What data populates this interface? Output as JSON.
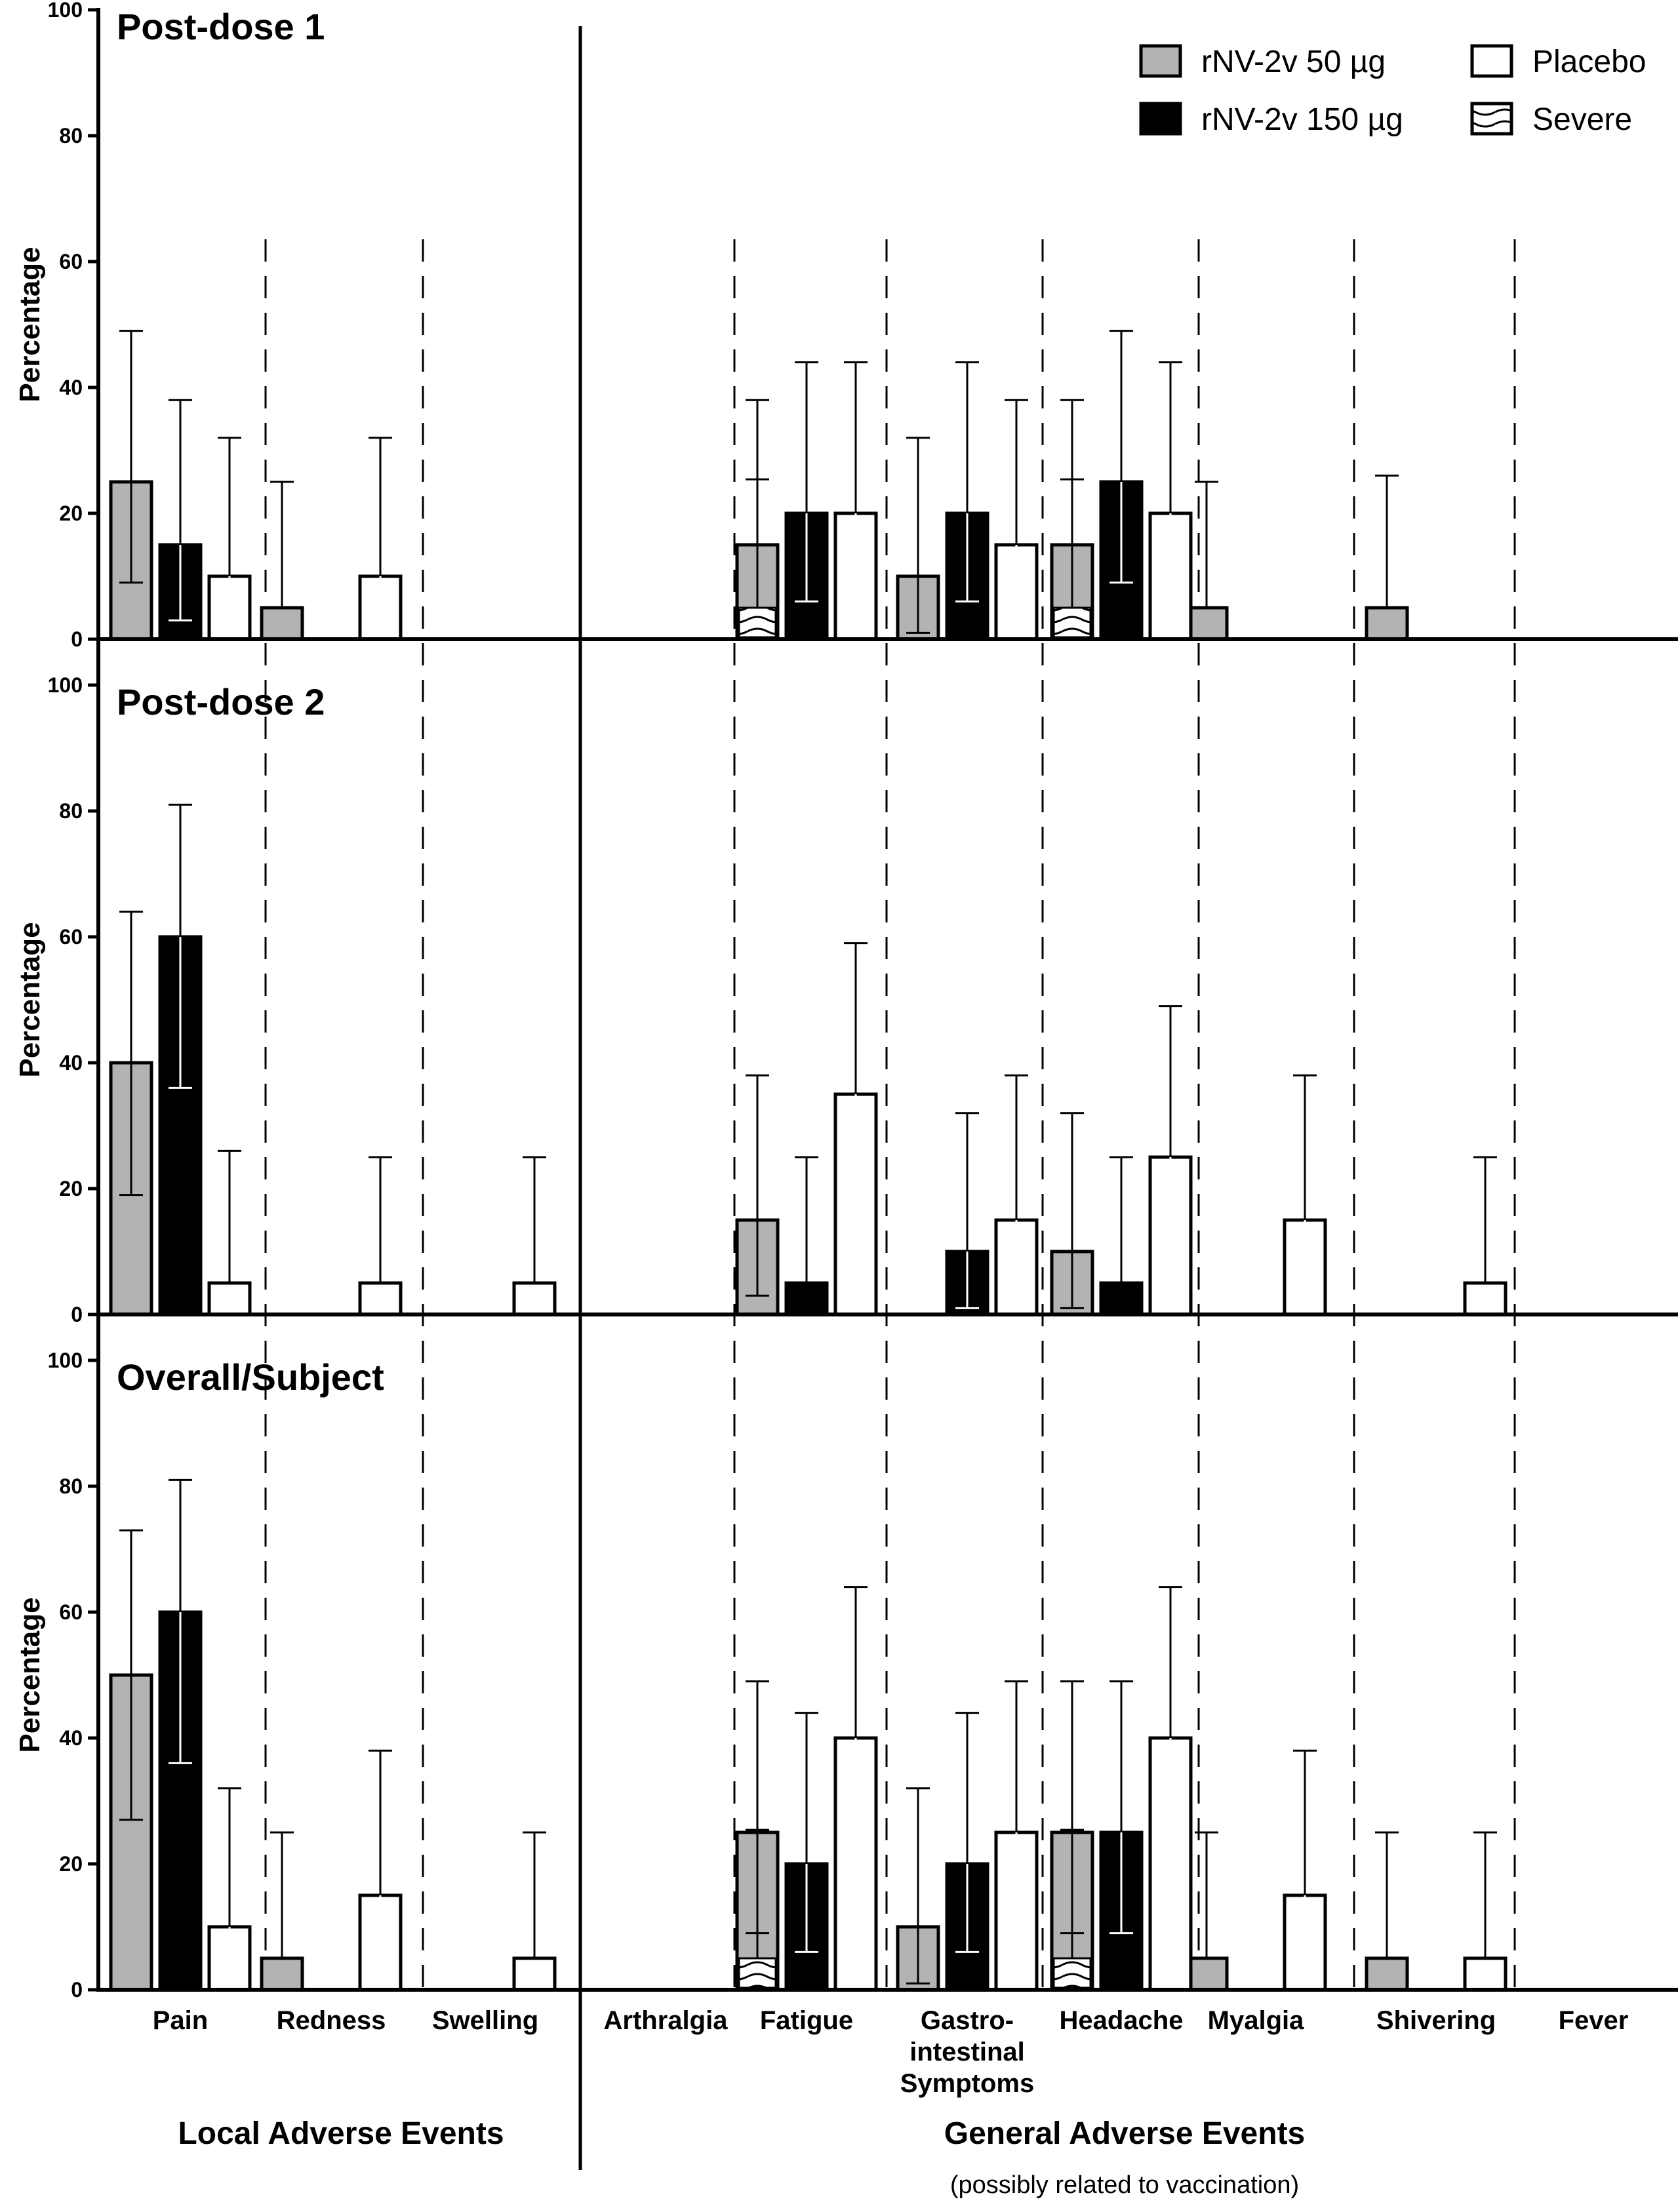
{
  "chart_data": {
    "type": "bar",
    "categories": [
      "Pain",
      "Redness",
      "Swelling",
      "Arthralgia",
      "Fatigue",
      "Gastro-\nintestinal\nSymptoms",
      "Headache",
      "Myalgia",
      "Shivering",
      "Fever"
    ],
    "group_labels": [
      {
        "label": "Local Adverse Events",
        "sub": ""
      },
      {
        "label": "General Adverse Events",
        "sub": "(possibly related to vaccination)"
      }
    ],
    "ylabel": "Percentage",
    "ylim": [
      0,
      100
    ],
    "yticks": [
      0,
      20,
      40,
      60,
      80,
      100
    ],
    "legend": {
      "placement": "top-right",
      "items": [
        {
          "name": "rNV-2v 50 µg",
          "color": "#b3b3b3",
          "pattern": "solid"
        },
        {
          "name": "rNV-2v 150 µg",
          "color": "#000000",
          "pattern": "solid"
        },
        {
          "name": "Placebo",
          "color": "#ffffff",
          "pattern": "solid"
        },
        {
          "name": "Severe",
          "color": "#ffffff",
          "pattern": "wavy"
        }
      ]
    },
    "panels": [
      {
        "title": "Post-dose 1",
        "series": [
          {
            "name": "rNV-2v 50 µg",
            "values": [
              25,
              5,
              0,
              0,
              15,
              10,
              15,
              5,
              5,
              0
            ],
            "err_upper": [
              49,
              25,
              null,
              null,
              38,
              32,
              38,
              25,
              26,
              null
            ],
            "err_lower": [
              9,
              null,
              null,
              null,
              null,
              1,
              null,
              null,
              null,
              null
            ],
            "severe": [
              0,
              0,
              0,
              0,
              5,
              0,
              5,
              0,
              0,
              0
            ],
            "severe_err_upper": [
              null,
              null,
              null,
              null,
              25.4,
              null,
              25.4,
              null,
              null,
              null
            ]
          },
          {
            "name": "rNV-2v 150 µg",
            "values": [
              15,
              0,
              0,
              0,
              20,
              20,
              25,
              0,
              0,
              0
            ],
            "err_upper": [
              38,
              null,
              null,
              null,
              44,
              44,
              49,
              null,
              null,
              null
            ],
            "err_lower": [
              3,
              null,
              null,
              null,
              6,
              6,
              9,
              null,
              null,
              null
            ],
            "severe": [
              0,
              0,
              0,
              0,
              0,
              0,
              0,
              0,
              0,
              0
            ],
            "severe_err_upper": [
              null,
              null,
              null,
              null,
              null,
              null,
              null,
              null,
              null,
              null
            ]
          },
          {
            "name": "Placebo",
            "values": [
              10,
              10,
              0,
              0,
              20,
              15,
              20,
              0,
              0,
              0
            ],
            "err_upper": [
              32,
              32,
              null,
              null,
              44,
              38,
              44,
              null,
              null,
              null
            ],
            "err_lower": [
              1,
              1,
              null,
              null,
              6,
              3,
              6,
              null,
              null,
              null
            ],
            "severe": [
              0,
              0,
              0,
              0,
              0,
              0,
              0,
              0,
              0,
              0
            ],
            "severe_err_upper": [
              null,
              null,
              null,
              null,
              null,
              null,
              null,
              null,
              null,
              null
            ]
          }
        ]
      },
      {
        "title": "Post-dose 2",
        "series": [
          {
            "name": "rNV-2v 50 µg",
            "values": [
              40,
              0,
              0,
              0,
              15,
              0,
              10,
              0,
              0,
              0
            ],
            "err_upper": [
              64,
              null,
              null,
              null,
              38,
              null,
              32,
              null,
              null,
              null
            ],
            "err_lower": [
              19,
              null,
              null,
              null,
              3,
              null,
              1,
              null,
              null,
              null
            ],
            "severe": [
              0,
              0,
              0,
              0,
              0,
              0,
              0,
              0,
              0,
              0
            ],
            "severe_err_upper": [
              null,
              null,
              null,
              null,
              null,
              null,
              null,
              null,
              null,
              null
            ]
          },
          {
            "name": "rNV-2v 150 µg",
            "values": [
              60,
              0,
              0,
              0,
              5,
              10,
              5,
              0,
              0,
              0
            ],
            "err_upper": [
              81,
              null,
              null,
              null,
              25,
              32,
              25,
              null,
              null,
              null
            ],
            "err_lower": [
              36,
              null,
              null,
              null,
              null,
              1,
              null,
              null,
              null,
              null
            ],
            "severe": [
              0,
              0,
              0,
              0,
              0,
              0,
              0,
              0,
              0,
              0
            ],
            "severe_err_upper": [
              null,
              null,
              null,
              null,
              null,
              null,
              null,
              null,
              null,
              null
            ]
          },
          {
            "name": "Placebo",
            "values": [
              5,
              5,
              5,
              0,
              35,
              15,
              25,
              15,
              5,
              0
            ],
            "err_upper": [
              26,
              25,
              25,
              null,
              59,
              38,
              49,
              38,
              25,
              null
            ],
            "err_lower": [
              null,
              null,
              null,
              null,
              15,
              3,
              9,
              3,
              null,
              null
            ],
            "severe": [
              0,
              0,
              0,
              0,
              0,
              0,
              0,
              0,
              0,
              0
            ],
            "severe_err_upper": [
              null,
              null,
              null,
              null,
              null,
              null,
              null,
              null,
              null,
              null
            ]
          }
        ]
      },
      {
        "title": "Overall/Subject",
        "series": [
          {
            "name": "rNV-2v 50 µg",
            "values": [
              50,
              5,
              0,
              0,
              25,
              10,
              25,
              5,
              5,
              0
            ],
            "err_upper": [
              73,
              25,
              null,
              null,
              49,
              32,
              49,
              25,
              25,
              null
            ],
            "err_lower": [
              27,
              null,
              null,
              null,
              9,
              1,
              9,
              null,
              null,
              null
            ],
            "severe": [
              0,
              0,
              0,
              0,
              5,
              0,
              5,
              0,
              0,
              0
            ],
            "severe_err_upper": [
              null,
              null,
              null,
              null,
              25.4,
              null,
              25.4,
              null,
              null,
              null
            ]
          },
          {
            "name": "rNV-2v 150 µg",
            "values": [
              60,
              0,
              0,
              0,
              20,
              20,
              25,
              0,
              0,
              0
            ],
            "err_upper": [
              81,
              null,
              null,
              null,
              44,
              44,
              49,
              null,
              null,
              null
            ],
            "err_lower": [
              36,
              null,
              null,
              null,
              6,
              6,
              9,
              null,
              null,
              null
            ],
            "severe": [
              0,
              0,
              0,
              0,
              0,
              0,
              0,
              0,
              0,
              0
            ],
            "severe_err_upper": [
              null,
              null,
              null,
              null,
              null,
              null,
              null,
              null,
              null,
              null
            ]
          },
          {
            "name": "Placebo",
            "values": [
              10,
              15,
              5,
              0,
              40,
              25,
              40,
              15,
              5,
              0
            ],
            "err_upper": [
              32,
              38,
              25,
              null,
              64,
              49,
              64,
              38,
              25,
              null
            ],
            "err_lower": [
              1,
              3,
              null,
              null,
              19,
              9,
              19,
              3,
              null,
              null
            ],
            "severe": [
              0,
              0,
              0,
              0,
              0,
              0,
              0,
              0,
              0,
              0
            ],
            "severe_err_upper": [
              null,
              null,
              null,
              null,
              null,
              null,
              null,
              null,
              null,
              null
            ]
          }
        ]
      }
    ]
  }
}
